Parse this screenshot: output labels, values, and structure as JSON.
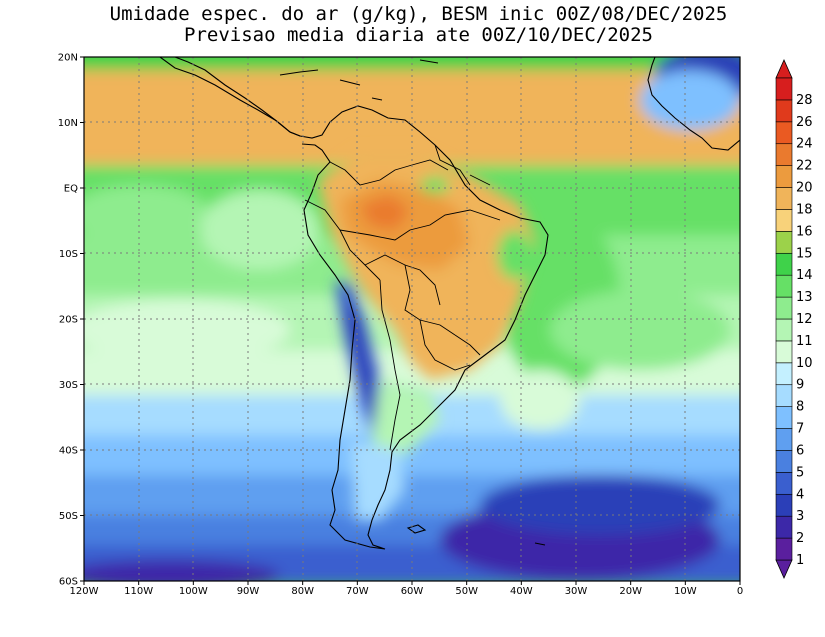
{
  "title_line1": "Umidade espec. do ar (g/kg), BESM inic 00Z/08/DEC/2025",
  "title_line2": "Previsao media diaria ate 00Z/10/DEC/2025",
  "lat_labels": [
    "20N",
    "10N",
    "EQ",
    "10S",
    "20S",
    "30S",
    "40S",
    "50S",
    "60S"
  ],
  "lon_labels": [
    "120W",
    "110W",
    "100W",
    "90W",
    "80W",
    "70W",
    "60W",
    "50W",
    "40W",
    "30W",
    "20W",
    "10W",
    "0"
  ],
  "colorbar": {
    "levels": [
      "1",
      "2",
      "3",
      "4",
      "5",
      "6",
      "7",
      "8",
      "9",
      "10",
      "11",
      "12",
      "13",
      "14",
      "15",
      "16",
      "18",
      "20",
      "22",
      "24",
      "26",
      "28"
    ],
    "colors": [
      "#5a1f9e",
      "#3c28a8",
      "#2b3fb8",
      "#3a5fcf",
      "#4a80e0",
      "#5f9ff0",
      "#7ec0ff",
      "#a6dcff",
      "#c4f0ff",
      "#d8fbd8",
      "#b4f5b4",
      "#8eec8e",
      "#66e066",
      "#3fd24a",
      "#9cd24a",
      "#f8d27a",
      "#f0b45a",
      "#ec9b3e",
      "#ea7a2e",
      "#ea5a22",
      "#e03a1c",
      "#d71e1e"
    ]
  }
}
